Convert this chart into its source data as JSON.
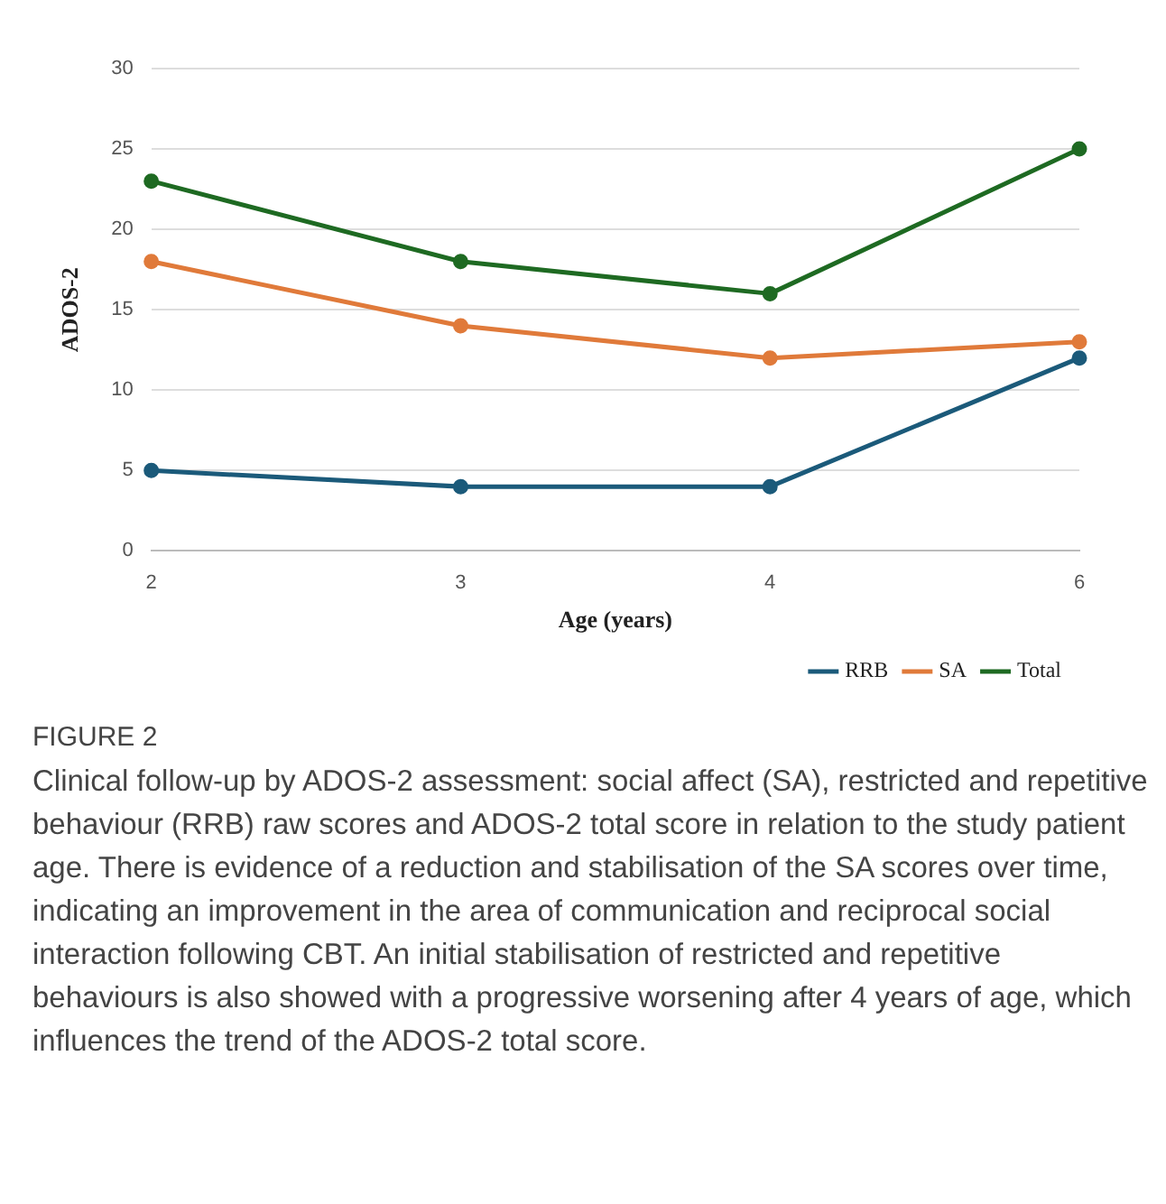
{
  "chart_data": {
    "type": "line",
    "xlabel": "Age (years)",
    "ylabel": "ADOS-2",
    "categories": [
      "2",
      "3",
      "4",
      "6"
    ],
    "series": [
      {
        "name": "RRB",
        "color": "#1b5a7a",
        "values": [
          5,
          4,
          4,
          12
        ]
      },
      {
        "name": "SA",
        "color": "#e07a3a",
        "values": [
          18,
          14,
          12,
          13
        ]
      },
      {
        "name": "Total",
        "color": "#1e6a22",
        "values": [
          23,
          18,
          16,
          25
        ]
      }
    ],
    "ylim": [
      0,
      30
    ],
    "yticks": [
      0,
      5,
      10,
      15,
      20,
      25,
      30
    ],
    "grid": "y",
    "legend": "bottom right",
    "marker": "circle",
    "line_style": "solid",
    "annotations": [
      "FIGURE 2",
      "Clinical follow-up by ADOS-2 assessment: social affect (SA), restricted and repetitive behaviour (RRB) raw scores and ADOS-2 total score in relation to the study patient age. There is evidence of a reduction and stabilisation of the SA scores over time, indicating an improvement in the area of communication and reciprocal social interaction following CBT. An initial stabilisation of restricted and repetitive behaviours is also showed with a progressive worsening after 4 years of age, which influences the trend of the ADOS-2 total score."
    ]
  }
}
